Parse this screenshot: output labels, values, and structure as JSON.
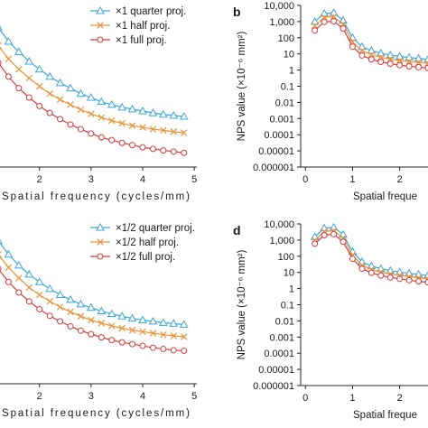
{
  "chart_data": [
    {
      "id": "a",
      "panel_letter": "",
      "type": "line",
      "xlabel": "Spatial frequency (cycles/mm)",
      "x_tick_labels": [
        "2",
        "3",
        "4",
        "5"
      ],
      "x_ticks": [
        2,
        3,
        4,
        5
      ],
      "xlim": [
        1.2,
        5.05
      ],
      "y_scale": "log",
      "ylim": [
        0.8,
        6.5
      ],
      "legend": {
        "position": "top-right",
        "entries": [
          "×1 quarter proj.",
          "×1 half proj.",
          "×1 full proj."
        ]
      },
      "x": [
        1.0,
        1.2,
        1.4,
        1.6,
        1.8,
        2.0,
        2.2,
        2.4,
        2.6,
        2.8,
        3.0,
        3.2,
        3.4,
        3.6,
        3.8,
        4.0,
        4.2,
        4.4,
        4.6,
        4.8
      ],
      "series": [
        {
          "name": "×1 quarter proj.",
          "color": "#3aa7d8",
          "marker": "triangle",
          "values": [
            5.8,
            4.8,
            4.0,
            3.5,
            3.1,
            2.8,
            2.55,
            2.35,
            2.2,
            2.05,
            1.95,
            1.85,
            1.78,
            1.72,
            1.68,
            1.64,
            1.6,
            1.57,
            1.55,
            1.53
          ]
        },
        {
          "name": "×1 half proj.",
          "color": "#e8943a",
          "marker": "cross",
          "values": [
            4.6,
            3.8,
            3.2,
            2.8,
            2.5,
            2.25,
            2.05,
            1.9,
            1.78,
            1.67,
            1.58,
            1.51,
            1.45,
            1.4,
            1.36,
            1.33,
            1.3,
            1.28,
            1.26,
            1.24
          ]
        },
        {
          "name": "×1 full proj.",
          "color": "#d93a3a",
          "marker": "circle",
          "values": [
            3.7,
            3.05,
            2.55,
            2.2,
            1.95,
            1.75,
            1.6,
            1.48,
            1.38,
            1.3,
            1.23,
            1.17,
            1.13,
            1.09,
            1.06,
            1.03,
            1.01,
            0.99,
            0.975,
            0.96
          ]
        }
      ]
    },
    {
      "id": "b",
      "panel_letter": "b",
      "type": "line",
      "xlabel": "Spatial freque",
      "ylabel": "NPS value (×10⁻⁶ mm²)",
      "x_tick_labels": [
        "0",
        "1",
        "2"
      ],
      "x_ticks": [
        0,
        1,
        2
      ],
      "xlim": [
        -0.1,
        2.6
      ],
      "y_scale": "log",
      "ylim": [
        1e-06,
        10000
      ],
      "y_tick_labels": [
        "10,000",
        "1,000",
        "100",
        "10",
        "1",
        "0.1",
        "0.01",
        "0.001",
        "0.0001",
        "0.00001",
        "0.000001"
      ],
      "x": [
        0.2,
        0.4,
        0.6,
        0.8,
        1.0,
        1.2,
        1.4,
        1.6,
        1.8,
        2.0,
        2.2,
        2.4,
        2.6
      ],
      "series": [
        {
          "name": "×1 quarter proj.",
          "color": "#3aa7d8",
          "marker": "triangle",
          "values": [
            1000,
            3200,
            3500,
            1200,
            100,
            28,
            16,
            11,
            8.5,
            7,
            6,
            5.2,
            4.6
          ]
        },
        {
          "name": "×1 half proj.",
          "color": "#e8943a",
          "marker": "cross",
          "values": [
            550,
            1800,
            2000,
            700,
            55,
            16,
            9,
            6.2,
            4.8,
            3.9,
            3.3,
            2.9,
            2.6
          ]
        },
        {
          "name": "×1 full proj.",
          "color": "#d93a3a",
          "marker": "circle",
          "values": [
            280,
            950,
            1050,
            370,
            28,
            8,
            4.6,
            3.2,
            2.5,
            2.0,
            1.7,
            1.5,
            1.35
          ]
        }
      ]
    },
    {
      "id": "c",
      "panel_letter": "",
      "type": "line",
      "xlabel": "Spatial frequency (cycles/mm)",
      "x_tick_labels": [
        "2",
        "3",
        "4",
        "5"
      ],
      "x_ticks": [
        2,
        3,
        4,
        5
      ],
      "xlim": [
        1.2,
        5.05
      ],
      "y_scale": "log",
      "ylim": [
        0.8,
        6.5
      ],
      "legend": {
        "position": "top-right",
        "entries": [
          "×1/2 quarter proj.",
          "×1/2 half proj.",
          "×1/2 full proj."
        ]
      },
      "x": [
        1.0,
        1.2,
        1.4,
        1.6,
        1.8,
        2.0,
        2.2,
        2.4,
        2.6,
        2.8,
        3.0,
        3.2,
        3.4,
        3.6,
        3.8,
        4.0,
        4.2,
        4.4,
        4.6,
        4.8
      ],
      "series": [
        {
          "name": "×1/2 quarter proj.",
          "color": "#3aa7d8",
          "marker": "triangle",
          "values": [
            6.0,
            5.0,
            4.2,
            3.65,
            3.25,
            2.95,
            2.7,
            2.5,
            2.35,
            2.22,
            2.12,
            2.03,
            1.96,
            1.9,
            1.85,
            1.81,
            1.78,
            1.75,
            1.73,
            1.71
          ]
        },
        {
          "name": "×1/2 half proj.",
          "color": "#e8943a",
          "marker": "cross",
          "values": [
            5.0,
            4.2,
            3.55,
            3.1,
            2.75,
            2.5,
            2.3,
            2.14,
            2.01,
            1.9,
            1.81,
            1.74,
            1.68,
            1.63,
            1.59,
            1.56,
            1.53,
            1.5,
            1.48,
            1.46
          ]
        },
        {
          "name": "×1/2 full proj.",
          "color": "#d93a3a",
          "marker": "circle",
          "values": [
            4.2,
            3.5,
            2.95,
            2.58,
            2.3,
            2.08,
            1.91,
            1.78,
            1.67,
            1.58,
            1.51,
            1.45,
            1.4,
            1.36,
            1.33,
            1.3,
            1.27,
            1.25,
            1.23,
            1.22
          ]
        }
      ]
    },
    {
      "id": "d",
      "panel_letter": "d",
      "type": "line",
      "xlabel": "Spatial freque",
      "ylabel": "NPS value (×10⁻⁶ mm²)",
      "x_tick_labels": [
        "0",
        "1",
        "2"
      ],
      "x_ticks": [
        0,
        1,
        2
      ],
      "xlim": [
        -0.1,
        2.6
      ],
      "y_scale": "log",
      "ylim": [
        1e-06,
        10000
      ],
      "y_tick_labels": [
        "10,000",
        "1,000",
        "100",
        "10",
        "1",
        "0.1",
        "0.01",
        "0.001",
        "0.0001",
        "0.00001",
        "0.000001"
      ],
      "x": [
        0.2,
        0.4,
        0.6,
        0.8,
        1.0,
        1.2,
        1.4,
        1.6,
        1.8,
        2.0,
        2.2,
        2.4,
        2.6
      ],
      "series": [
        {
          "name": "×1/2 quarter proj.",
          "color": "#3aa7d8",
          "marker": "triangle",
          "values": [
            1600,
            5500,
            6200,
            2200,
            190,
            45,
            25,
            17,
            13,
            10.5,
            8.8,
            7.5,
            6.6
          ]
        },
        {
          "name": "×1/2 half proj.",
          "color": "#e8943a",
          "marker": "cross",
          "values": [
            1000,
            3400,
            3800,
            1350,
            115,
            28,
            15.5,
            10.5,
            8,
            6.5,
            5.4,
            4.6,
            4.0
          ]
        },
        {
          "name": "×1/2 full proj.",
          "color": "#d93a3a",
          "marker": "circle",
          "values": [
            600,
            2000,
            2300,
            800,
            70,
            17,
            9.5,
            6.4,
            4.9,
            4.0,
            3.3,
            2.8,
            2.45
          ]
        }
      ]
    }
  ]
}
